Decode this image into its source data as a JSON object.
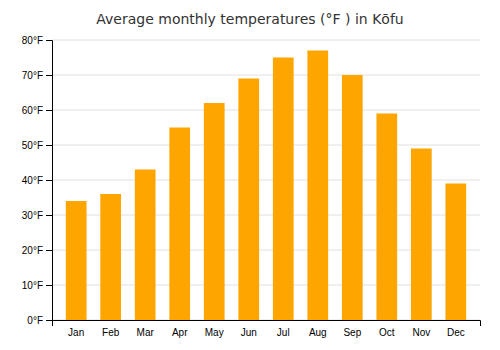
{
  "chart_data": {
    "type": "bar",
    "title": "Average monthly temperatures (°F ) in Kōfu",
    "categories": [
      "Jan",
      "Feb",
      "Mar",
      "Apr",
      "May",
      "Jun",
      "Jul",
      "Aug",
      "Sep",
      "Oct",
      "Nov",
      "Dec"
    ],
    "values": [
      34,
      36,
      43,
      55,
      62,
      69,
      75,
      77,
      70,
      59,
      49,
      39
    ],
    "color": "#FFA500",
    "ylim": [
      0,
      80
    ],
    "yticks": [
      {
        "value": 0,
        "label": "0°F"
      },
      {
        "value": 10,
        "label": "10°F"
      },
      {
        "value": 20,
        "label": "20°F"
      },
      {
        "value": 30,
        "label": "30°F"
      },
      {
        "value": 40,
        "label": "40°F"
      },
      {
        "value": 50,
        "label": "50°F"
      },
      {
        "value": 60,
        "label": "60°F"
      },
      {
        "value": 70,
        "label": "70°F"
      },
      {
        "value": 80,
        "label": "80°F"
      }
    ],
    "grid": true
  }
}
